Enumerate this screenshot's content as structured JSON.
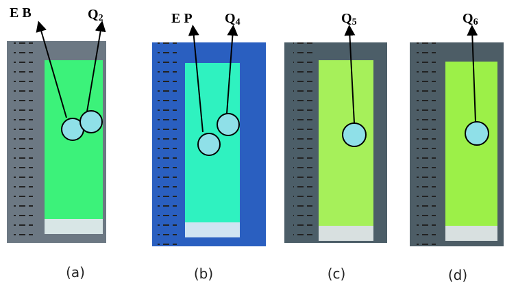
{
  "labels": {
    "eb": "E B",
    "q2": {
      "letter": "Q",
      "sub": "2"
    },
    "ep": "E P",
    "q4": {
      "letter": "Q",
      "sub": "4"
    },
    "q5": {
      "letter": "Q",
      "sub": "5"
    },
    "q6": {
      "letter": "Q",
      "sub": "6"
    }
  },
  "captions": [
    "(a)",
    "(b)",
    "(c)",
    "(d)"
  ]
}
